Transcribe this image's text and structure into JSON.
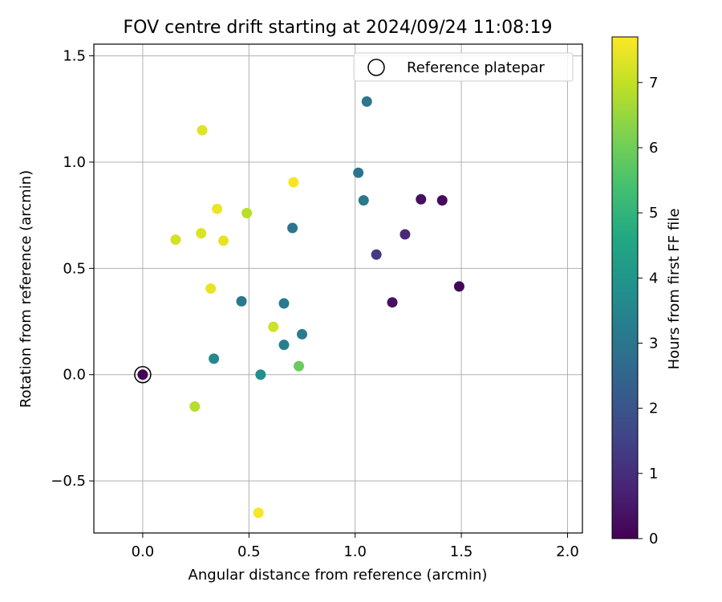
{
  "chart_data": {
    "type": "scatter",
    "title": "FOV centre drift starting at 2024/09/24 11:08:19",
    "xlabel": "Angular distance from reference (arcmin)",
    "ylabel": "Rotation from reference (arcmin)",
    "xlim": [
      -0.23,
      2.07
    ],
    "ylim": [
      -0.745,
      1.555
    ],
    "x_ticks": [
      0.0,
      0.5,
      1.0,
      1.5,
      2.0
    ],
    "x_tick_labels": [
      "0.0",
      "0.5",
      "1.0",
      "1.5",
      "2.0"
    ],
    "y_ticks": [
      -0.5,
      0.0,
      0.5,
      1.0,
      1.5
    ],
    "y_tick_labels": [
      "−0.5",
      "0.0",
      "0.5",
      "1.0",
      "1.5"
    ],
    "grid": true,
    "legend": {
      "placement": "upper right",
      "entries": [
        "Reference platepar"
      ]
    },
    "colorbar": {
      "label": "Hours from first FF file",
      "colormap": "viridis",
      "range": [
        0,
        7.7
      ],
      "ticks": [
        0,
        1,
        2,
        3,
        4,
        5,
        6,
        7
      ],
      "tick_labels": [
        "0",
        "1",
        "2",
        "3",
        "4",
        "5",
        "6",
        "7"
      ]
    },
    "reference_point": {
      "x": 0.0,
      "y": 0.0
    },
    "points": [
      {
        "x": 0.0,
        "y": 0.0,
        "hours": 0.0
      },
      {
        "x": 1.49,
        "y": 0.415,
        "hours": 0.1
      },
      {
        "x": 1.41,
        "y": 0.82,
        "hours": 0.2
      },
      {
        "x": 1.31,
        "y": 0.825,
        "hours": 0.3
      },
      {
        "x": 1.175,
        "y": 0.34,
        "hours": 0.35
      },
      {
        "x": 1.235,
        "y": 0.66,
        "hours": 0.9
      },
      {
        "x": 1.1,
        "y": 0.565,
        "hours": 1.3
      },
      {
        "x": 1.055,
        "y": 1.285,
        "hours": 3.05
      },
      {
        "x": 1.015,
        "y": 0.95,
        "hours": 2.95
      },
      {
        "x": 1.04,
        "y": 0.82,
        "hours": 3.1
      },
      {
        "x": 0.705,
        "y": 0.69,
        "hours": 3.0
      },
      {
        "x": 0.465,
        "y": 0.345,
        "hours": 3.05
      },
      {
        "x": 0.665,
        "y": 0.335,
        "hours": 3.1
      },
      {
        "x": 0.75,
        "y": 0.19,
        "hours": 3.2
      },
      {
        "x": 0.665,
        "y": 0.14,
        "hours": 3.3
      },
      {
        "x": 0.335,
        "y": 0.075,
        "hours": 3.6
      },
      {
        "x": 0.555,
        "y": 0.0,
        "hours": 3.8
      },
      {
        "x": 0.735,
        "y": 0.04,
        "hours": 5.9
      },
      {
        "x": 0.49,
        "y": 0.76,
        "hours": 6.9
      },
      {
        "x": 0.245,
        "y": -0.15,
        "hours": 6.85
      },
      {
        "x": 0.615,
        "y": 0.225,
        "hours": 7.15
      },
      {
        "x": 0.155,
        "y": 0.635,
        "hours": 7.2
      },
      {
        "x": 0.275,
        "y": 0.665,
        "hours": 7.3
      },
      {
        "x": 0.28,
        "y": 1.15,
        "hours": 7.35
      },
      {
        "x": 0.38,
        "y": 0.63,
        "hours": 7.4
      },
      {
        "x": 0.32,
        "y": 0.405,
        "hours": 7.45
      },
      {
        "x": 0.35,
        "y": 0.78,
        "hours": 7.5
      },
      {
        "x": 0.71,
        "y": 0.905,
        "hours": 7.6
      },
      {
        "x": 0.545,
        "y": -0.65,
        "hours": 7.65
      }
    ]
  }
}
